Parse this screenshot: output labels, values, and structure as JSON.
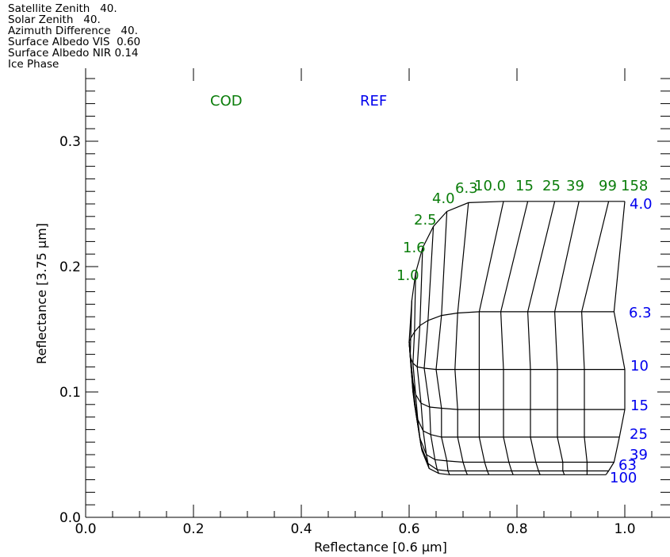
{
  "header_lines": [
    "Satellite Zenith   40.",
    "Solar Zenith   40.",
    "Azimuth Difference   40.",
    "Surface Albedo VIS  0.60",
    "Surface Albedo NIR 0.14",
    "Ice Phase"
  ],
  "colors": {
    "cod": "#0b7d0b",
    "ref": "#0000ee",
    "grid": "#000000"
  },
  "chart_data": {
    "type": "line",
    "xlabel": "Reflectance   [0.6 μm]",
    "ylabel": "Reflectance   [3.75 μm]",
    "xlim": [
      0.0,
      1.1
    ],
    "ylim": [
      0.0,
      0.35
    ],
    "x_ticks": [
      0.0,
      0.2,
      0.4,
      0.6,
      0.8,
      1.0
    ],
    "x_tick_labels": [
      "0.0",
      "0.2",
      "0.4",
      "0.6",
      "0.8",
      "1.0"
    ],
    "y_ticks": [
      0.0,
      0.1,
      0.2,
      0.3
    ],
    "y_tick_labels": [
      "0.0",
      "0.1",
      "0.2",
      "0.3"
    ],
    "annotations": {
      "cod_title": "COD",
      "ref_title": "REF"
    },
    "cod_labels": [
      "1.0",
      "1.6",
      "2.5",
      "4.0",
      "6.3",
      "10.0",
      "15",
      "25",
      "39",
      "99",
      "158"
    ],
    "ref_labels": [
      "4.0",
      "6.3",
      "10",
      "15",
      "25",
      "39",
      "63",
      "100"
    ],
    "series": [
      {
        "name": "4.0",
        "x": [
          0.6,
          0.605,
          0.612,
          0.625,
          0.645,
          0.67,
          0.71,
          0.775,
          0.82,
          0.87,
          0.915,
          0.97,
          1.0
        ],
        "y": [
          0.14,
          0.173,
          0.195,
          0.215,
          0.232,
          0.244,
          0.251,
          0.252,
          0.252,
          0.252,
          0.252,
          0.252,
          0.252
        ]
      },
      {
        "name": "6.3",
        "x": [
          0.6,
          0.603,
          0.61,
          0.62,
          0.635,
          0.66,
          0.69,
          0.73,
          0.77,
          0.82,
          0.87,
          0.92,
          0.98
        ],
        "y": [
          0.14,
          0.143,
          0.148,
          0.153,
          0.157,
          0.161,
          0.163,
          0.164,
          0.164,
          0.164,
          0.164,
          0.164,
          0.164
        ]
      },
      {
        "name": "10",
        "x": [
          0.6,
          0.602,
          0.607,
          0.615,
          0.628,
          0.65,
          0.685,
          0.73,
          0.775,
          0.825,
          0.875,
          0.925,
          1.0
        ],
        "y": [
          0.14,
          0.128,
          0.123,
          0.12,
          0.119,
          0.118,
          0.118,
          0.118,
          0.118,
          0.118,
          0.118,
          0.118,
          0.118
        ]
      },
      {
        "name": "15",
        "x": [
          0.6,
          0.605,
          0.612,
          0.622,
          0.638,
          0.66,
          0.69,
          0.73,
          0.775,
          0.825,
          0.875,
          0.925,
          1.0
        ],
        "y": [
          0.14,
          0.112,
          0.098,
          0.091,
          0.088,
          0.087,
          0.086,
          0.086,
          0.086,
          0.086,
          0.086,
          0.086,
          0.086
        ]
      },
      {
        "name": "25",
        "x": [
          0.6,
          0.607,
          0.616,
          0.626,
          0.64,
          0.66,
          0.69,
          0.73,
          0.775,
          0.825,
          0.875,
          0.925,
          0.99
        ],
        "y": [
          0.14,
          0.1,
          0.078,
          0.069,
          0.066,
          0.064,
          0.064,
          0.064,
          0.064,
          0.064,
          0.064,
          0.064,
          0.064
        ]
      },
      {
        "name": "39",
        "x": [
          0.6,
          0.61,
          0.62,
          0.632,
          0.648,
          0.67,
          0.7,
          0.74,
          0.785,
          0.835,
          0.885,
          0.93,
          0.98
        ],
        "y": [
          0.14,
          0.09,
          0.063,
          0.05,
          0.046,
          0.045,
          0.044,
          0.044,
          0.044,
          0.044,
          0.044,
          0.044,
          0.044
        ]
      },
      {
        "name": "63",
        "x": [
          0.6,
          0.612,
          0.622,
          0.635,
          0.652,
          0.672,
          0.705,
          0.745,
          0.79,
          0.84,
          0.885,
          0.93,
          0.97
        ],
        "y": [
          0.14,
          0.085,
          0.057,
          0.043,
          0.038,
          0.037,
          0.037,
          0.037,
          0.037,
          0.037,
          0.037,
          0.037,
          0.037
        ]
      },
      {
        "name": "100",
        "x": [
          0.6,
          0.613,
          0.624,
          0.637,
          0.655,
          0.675,
          0.708,
          0.748,
          0.793,
          0.843,
          0.888,
          0.93,
          0.965
        ],
        "y": [
          0.14,
          0.082,
          0.053,
          0.039,
          0.035,
          0.034,
          0.034,
          0.034,
          0.034,
          0.034,
          0.034,
          0.034,
          0.034
        ]
      }
    ]
  }
}
